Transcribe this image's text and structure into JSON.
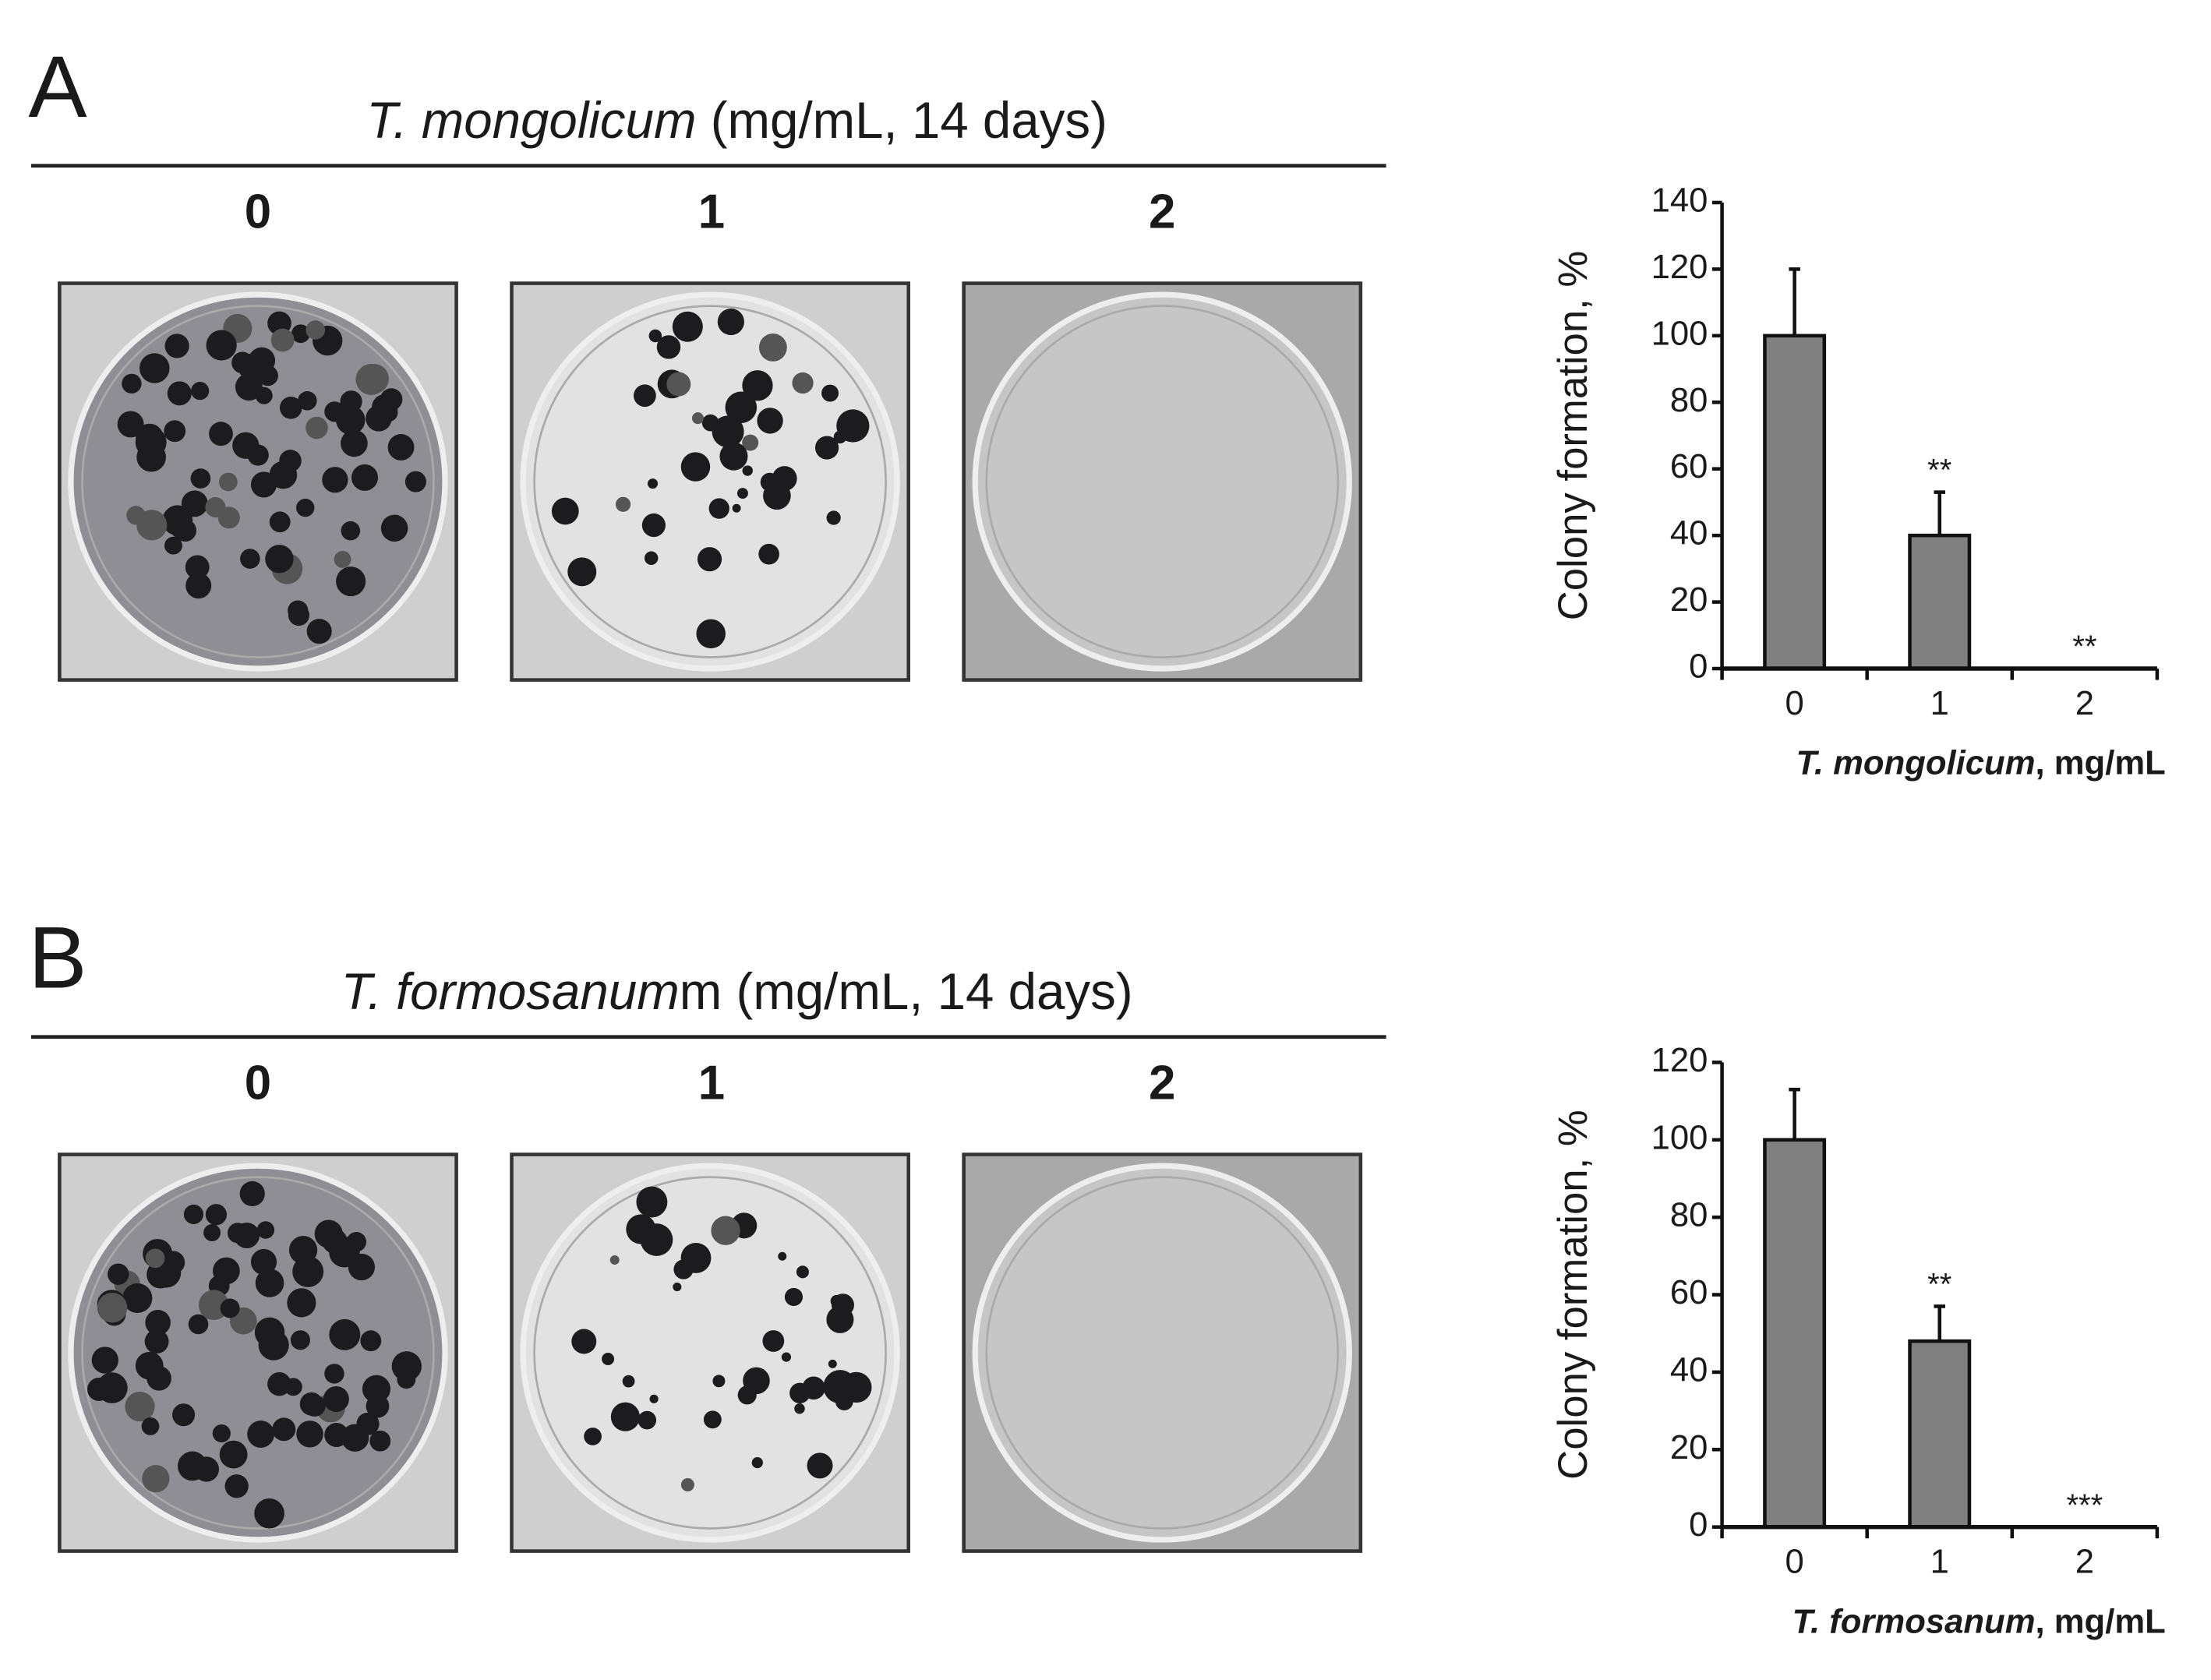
{
  "panels": [
    {
      "label": "A",
      "title": {
        "italic": "T. mongolicum",
        "rest": " (mg/mL, 14 days)"
      },
      "doses": [
        "0",
        "1",
        "2"
      ]
    },
    {
      "label": "B",
      "title": {
        "italic": "T. formosanum",
        "rest": "m (mg/mL, 14 days)"
      },
      "doses": [
        "0",
        "1",
        "2"
      ]
    }
  ],
  "chart_data": [
    {
      "type": "bar",
      "categories": [
        "0",
        "1",
        "2"
      ],
      "values": [
        100,
        40,
        0
      ],
      "errors": [
        20,
        13,
        0
      ],
      "annotations": [
        null,
        "**",
        "**"
      ],
      "color": "#808080",
      "y_label": "Colony formation, %",
      "x_label": {
        "italic": "T. mongolicum",
        "rest": ", mg/mL"
      },
      "ylim": [
        0,
        140
      ],
      "yticks": [
        0,
        20,
        40,
        60,
        80,
        100,
        120,
        140
      ]
    },
    {
      "type": "bar",
      "categories": [
        "0",
        "1",
        "2"
      ],
      "values": [
        100,
        48,
        0
      ],
      "errors": [
        13,
        9,
        0
      ],
      "annotations": [
        null,
        "**",
        "***"
      ],
      "color": "#808080",
      "y_label": "Colony formation, %",
      "x_label": {
        "italic": "T. formosanum",
        "rest": ", mg/mL"
      },
      "ylim": [
        0,
        120
      ],
      "yticks": [
        0,
        20,
        40,
        60,
        80,
        100,
        120
      ]
    }
  ]
}
